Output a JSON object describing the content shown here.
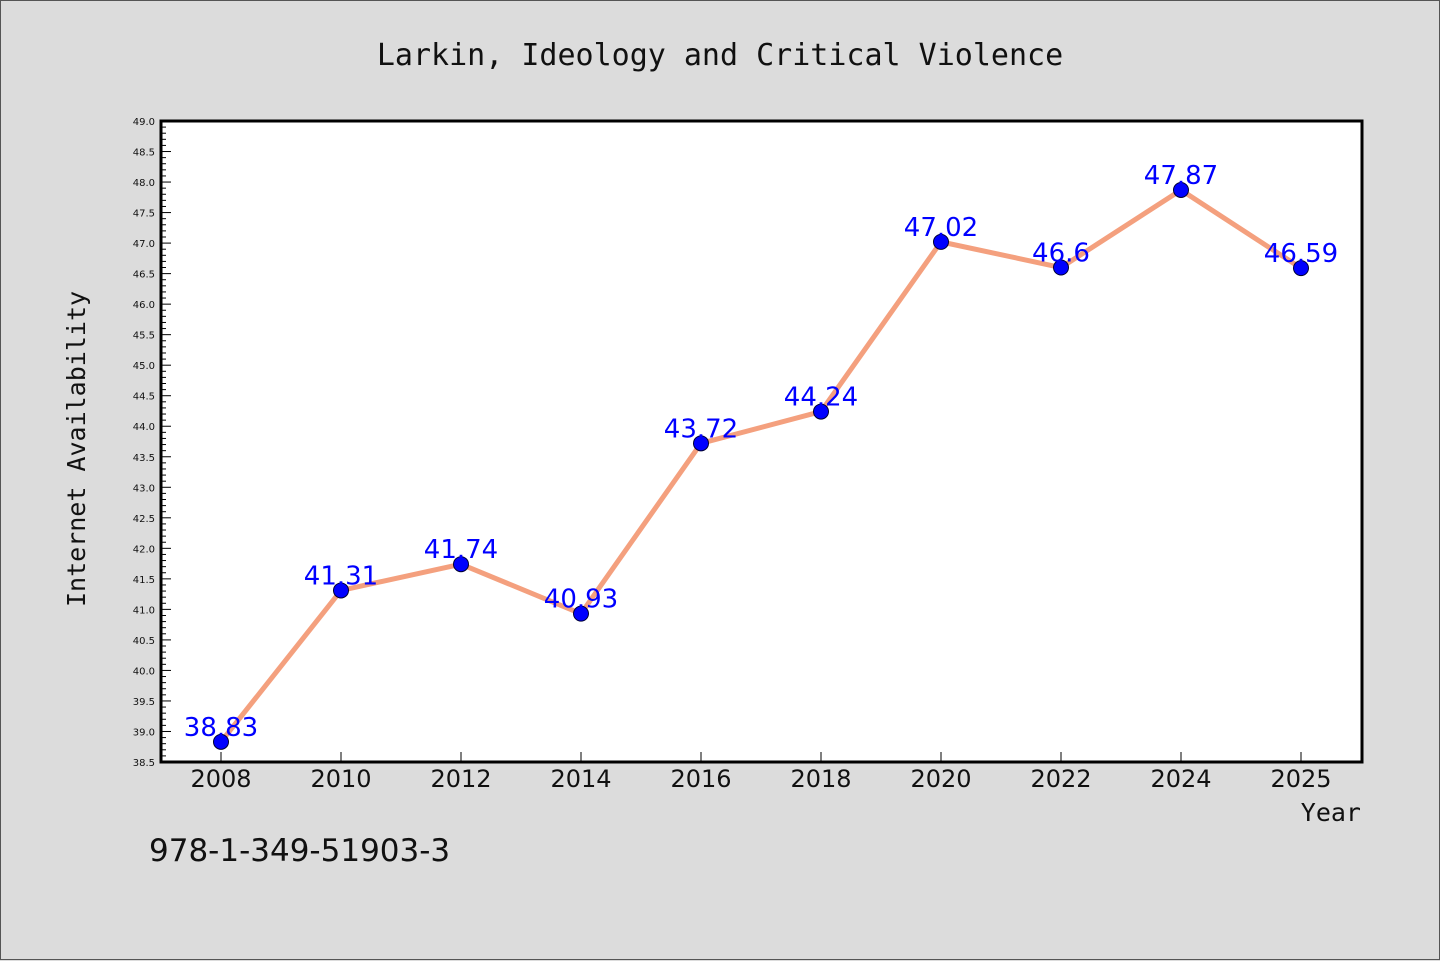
{
  "chart_data": {
    "type": "line",
    "title": "Larkin, Ideology and Critical Violence",
    "xlabel": "Year",
    "ylabel": "Internet Availability",
    "x": [
      "2008",
      "2010",
      "2012",
      "2014",
      "2016",
      "2018",
      "2020",
      "2022",
      "2024",
      "2025"
    ],
    "series": [
      {
        "values": [
          38.83,
          41.31,
          41.74,
          40.93,
          43.72,
          44.24,
          47.02,
          46.6,
          47.87,
          46.59
        ],
        "data_labels": [
          "38.83",
          "41.31",
          "41.74",
          "40.93",
          "43.72",
          "44.24",
          "47.02",
          "46.6",
          "47.87",
          "46.59"
        ]
      }
    ],
    "ylim": [
      38.5,
      49.0
    ],
    "y_ticks": [
      "38.5",
      "39.0",
      "39.5",
      "40.0",
      "40.5",
      "41.0",
      "41.5",
      "42.0",
      "42.5",
      "43.0",
      "43.5",
      "44.0",
      "44.5",
      "45.0",
      "45.5",
      "46.0",
      "46.5",
      "47.0",
      "47.5",
      "48.0",
      "48.5",
      "49.0"
    ],
    "grid": false,
    "legend": "none",
    "colors": {
      "line": "#f4a07e",
      "marker": "#0000ff",
      "label": "#0000ff",
      "background": "#dcdcdc",
      "plot_background": "#ffffff"
    }
  },
  "footer": {
    "isbn": "978-1-349-51903-3"
  }
}
